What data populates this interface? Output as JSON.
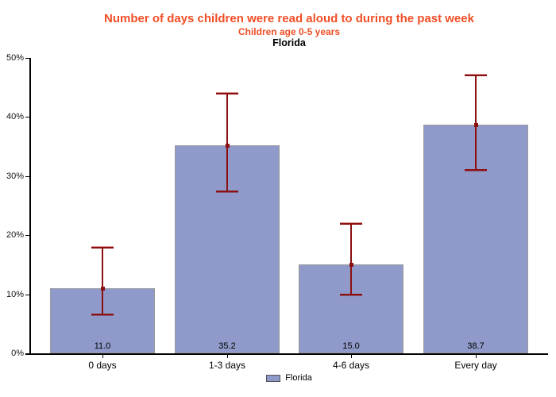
{
  "header": {
    "title": "Number of days children were read aloud to during the past week",
    "subtitle": "Children age 0-5 years",
    "region": "Florida"
  },
  "legend": {
    "label": "Florida"
  },
  "colors": {
    "title_text": "#F14E26",
    "subtitle_text": "#F14E26",
    "bar_fill": "#8F9ACA",
    "bar_border": "#9A9A9A",
    "error_bar": "#8B1010",
    "error_cap_highlight": "#DB9090",
    "axis": "#000000"
  },
  "chart_data": {
    "type": "bar",
    "title": "Number of days children were read aloud to during the past week",
    "subtitle": "Children age 0-5 years",
    "region_line": "Florida",
    "categories": [
      "0 days",
      "1-3 days",
      "4-6 days",
      "Every day"
    ],
    "values": [
      11.0,
      35.2,
      15.0,
      38.7
    ],
    "value_labels": [
      "11.0",
      "35.2",
      "15.0",
      "38.7"
    ],
    "error_low": [
      6.6,
      27.4,
      10.0,
      31.1
    ],
    "error_high": [
      17.9,
      43.9,
      21.9,
      47.0
    ],
    "series_name": "Florida",
    "ylim": [
      0,
      50
    ],
    "yticks": [
      "0%",
      "10%",
      "20%",
      "30%",
      "40%",
      "50%"
    ],
    "xlabel": "",
    "ylabel": "",
    "grid": false,
    "legend_position": "bottom-center"
  }
}
